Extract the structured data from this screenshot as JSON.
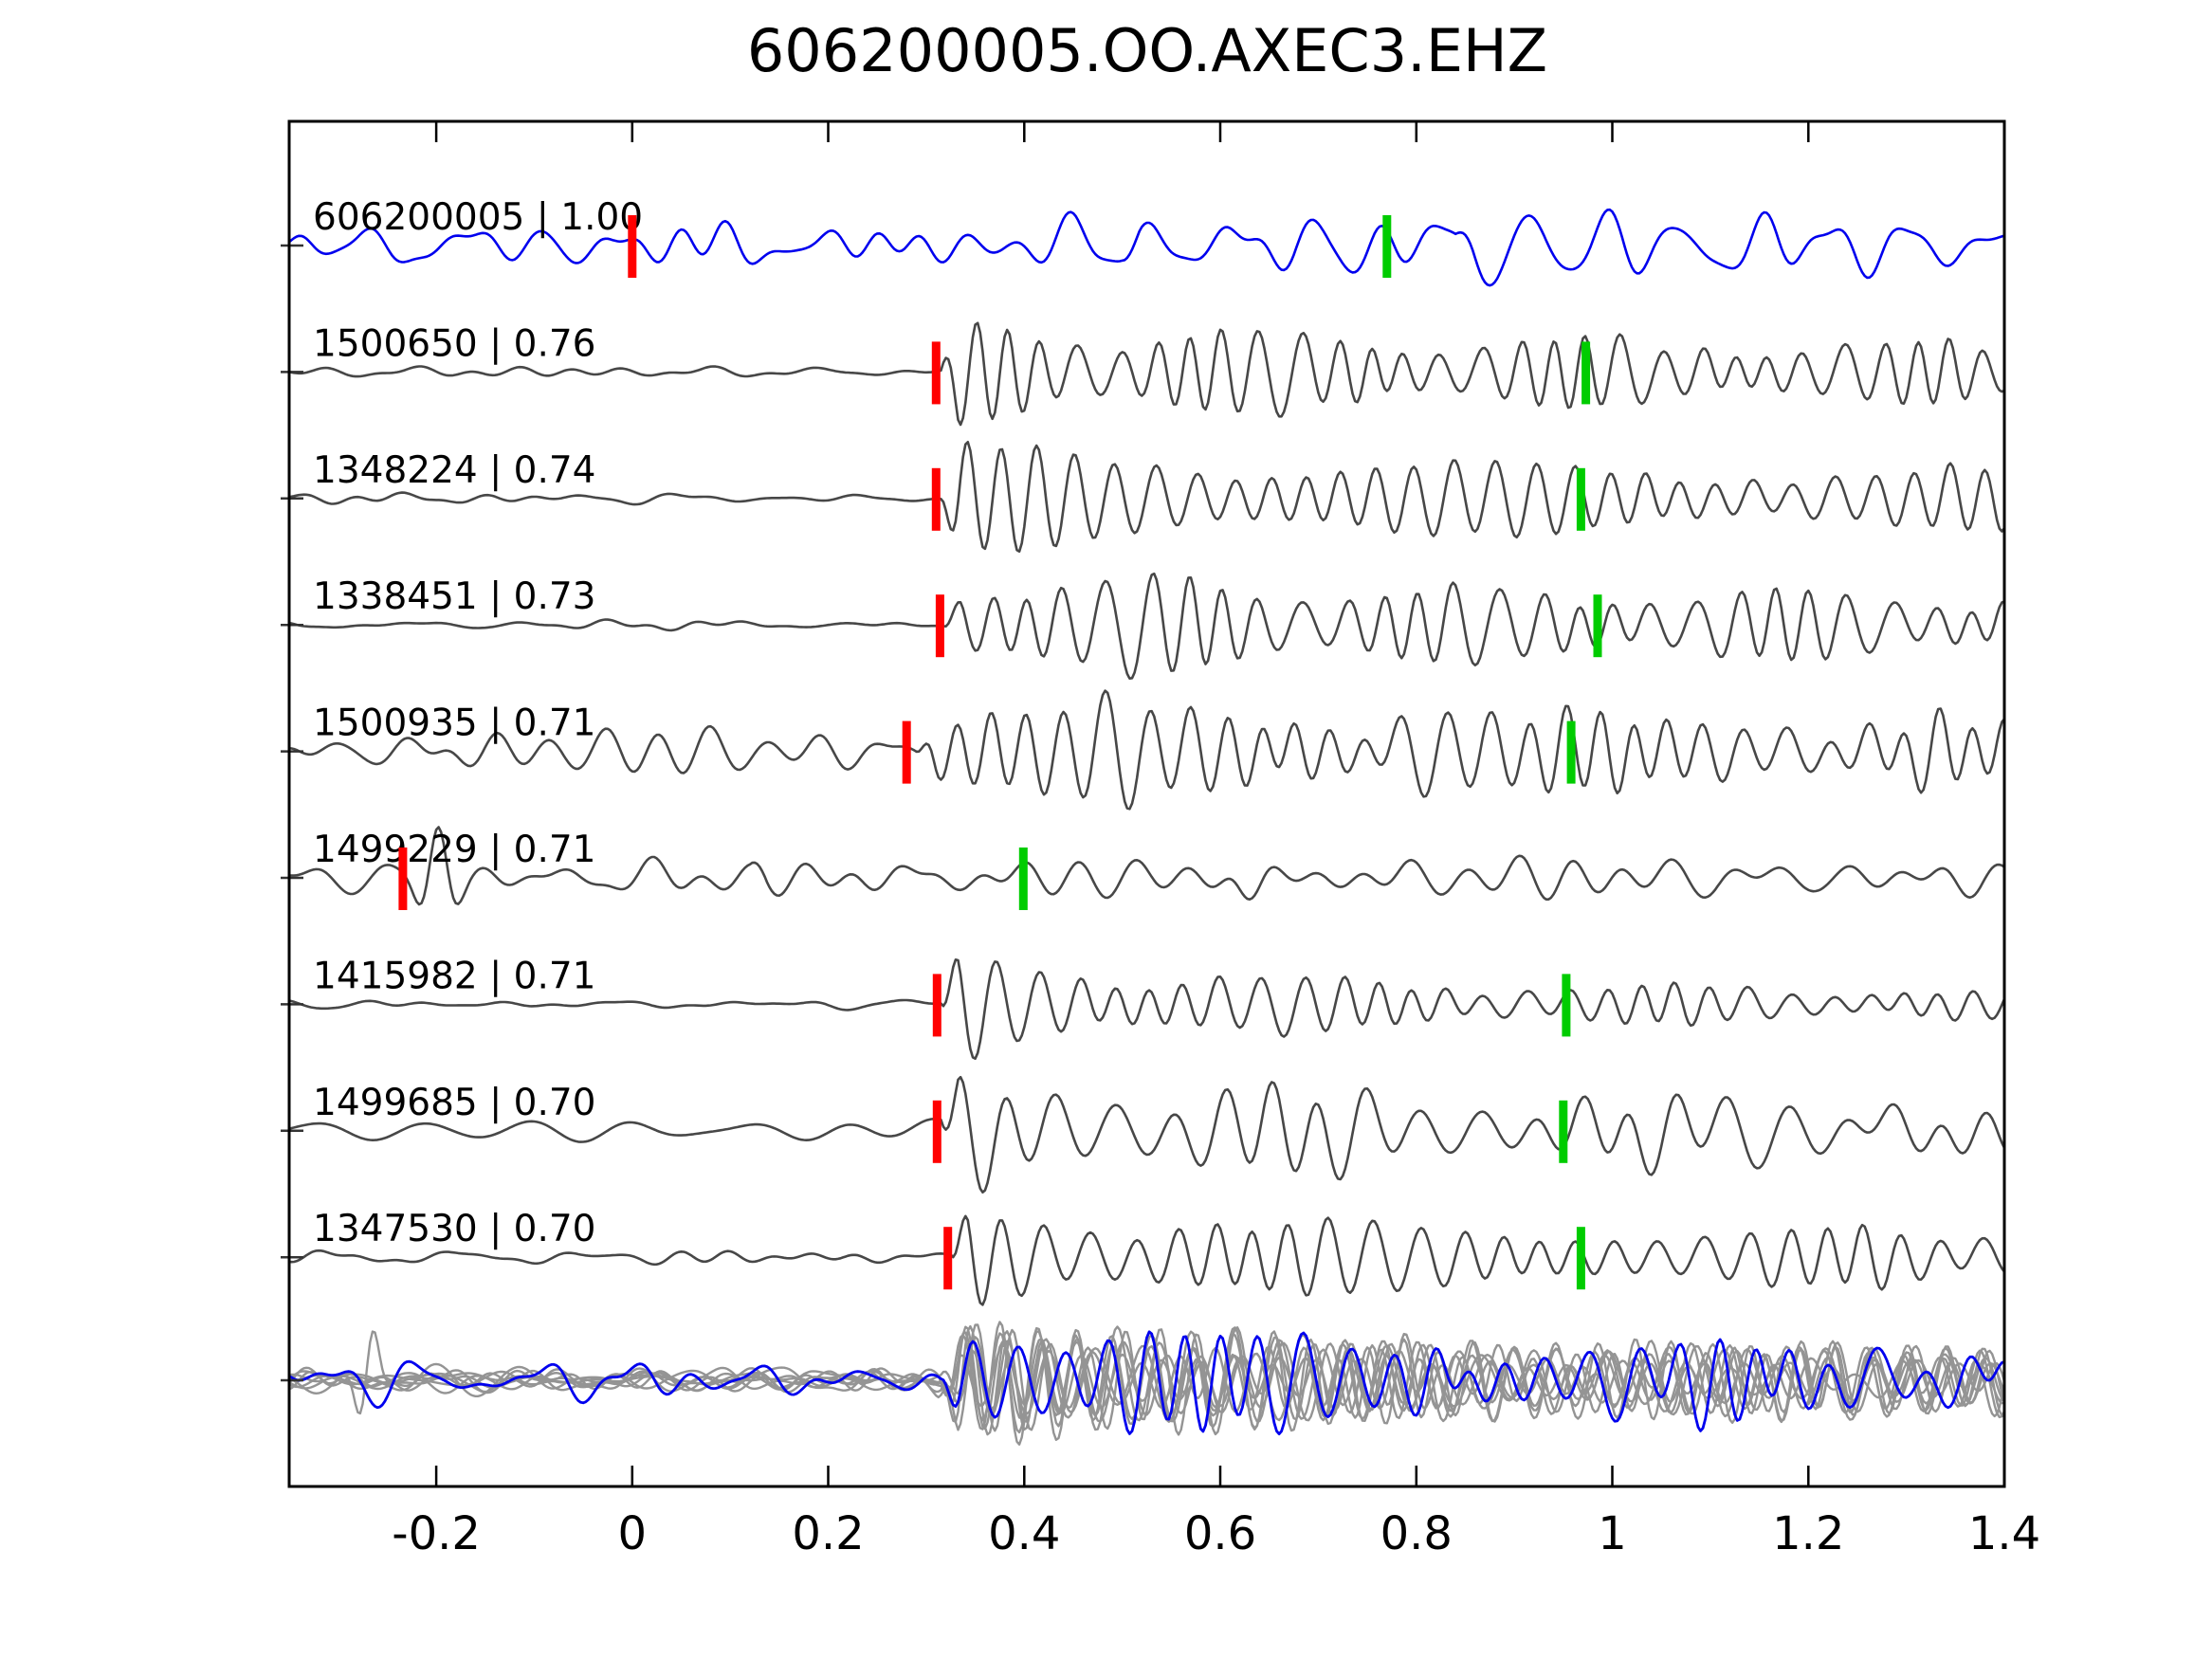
{
  "title": "606200005.OO.AXEC3.EHZ",
  "colors": {
    "reference_trace": "#0000ee",
    "match_trace": "#474747",
    "overlay_gray": "#949494",
    "pick_red": "#ff0000",
    "pick_green": "#00cc00",
    "frame": "#000000",
    "text": "#000000"
  },
  "chart_data": {
    "type": "line",
    "title": "606200005.OO.AXEC3.EHZ",
    "description": "Waveform cross-correlation alignment plot: reference event trace (blue) with best-matching event traces (gray), red bars = pick/onset markers, green bars = secondary pick markers, bottom row = all traces superimposed.",
    "x_axis": {
      "min": -0.35,
      "max": 1.4,
      "tick_values": [
        -0.2,
        0,
        0.2,
        0.4,
        0.6,
        0.8,
        1.0,
        1.2,
        1.4
      ],
      "tick_labels": [
        "-0.2",
        "0",
        "0.2",
        "0.4",
        "0.6",
        "0.8",
        "1",
        "1.2",
        "1.4"
      ],
      "grid": false
    },
    "legend": null,
    "traces": [
      {
        "id": "606200005",
        "correlation": "1.00",
        "display": "606200005 | 1.00",
        "role": "reference",
        "red_pick": 0.0,
        "green_pick": 0.77,
        "synth": {
          "seed": 7,
          "pre": 22,
          "band": [
            5,
            26
          ],
          "bursts": [
            [
              0.5,
              24,
              13,
              1.0,
              0.45
            ],
            [
              0.84,
              20,
              16,
              3.0,
              0.15
            ]
          ],
          "spikes": []
        }
      },
      {
        "id": "1500650",
        "correlation": "0.76",
        "display": "1500650 | 0.76",
        "role": "match",
        "red_pick": 0.31,
        "green_pick": 0.973,
        "synth": {
          "seed": 21,
          "pre": 5,
          "band": [
            6,
            22
          ],
          "bursts": [
            [
              0.315,
              55,
              27,
              2.0,
              0.48
            ]
          ],
          "spikes": []
        }
      },
      {
        "id": "1348224",
        "correlation": "0.74",
        "display": "1348224 | 0.74",
        "role": "match",
        "red_pick": 0.31,
        "green_pick": 0.968,
        "synth": {
          "seed": 33,
          "pre": 5,
          "band": [
            6,
            24
          ],
          "bursts": [
            [
              0.315,
              55,
              26,
              2.0,
              0.48
            ]
          ],
          "spikes": []
        }
      },
      {
        "id": "1338451",
        "correlation": "0.73",
        "display": "1338451 | 0.73",
        "role": "match",
        "red_pick": 0.314,
        "green_pick": 0.985,
        "synth": {
          "seed": 45,
          "pre": 6,
          "band": [
            6,
            24
          ],
          "bursts": [
            [
              0.318,
              56,
              25,
              1.8,
              0.5
            ]
          ],
          "spikes": []
        }
      },
      {
        "id": "1500935",
        "correlation": "0.71",
        "display": "1500935 | 0.71",
        "role": "match",
        "red_pick": 0.28,
        "green_pick": 0.958,
        "synth": {
          "seed": 58,
          "pre": 20,
          "band": [
            10,
            28
          ],
          "bursts": [
            [
              0.29,
              52,
              26,
              1.5,
              0.55
            ]
          ],
          "spikes": []
        }
      },
      {
        "id": "1499229",
        "correlation": "0.71",
        "display": "1499229 | 0.71",
        "role": "match",
        "red_pick": -0.234,
        "green_pick": 0.399,
        "synth": {
          "seed": 64,
          "pre": 16,
          "band": [
            6,
            24
          ],
          "bursts": [
            [
              0.12,
              16,
              18,
              0.6,
              0.65
            ]
          ],
          "spikes": [
            [
              -0.2,
              52,
              0.022,
              22
            ],
            [
              0.63,
              26,
              0.025,
              14
            ]
          ]
        }
      },
      {
        "id": "1415982",
        "correlation": "0.71",
        "display": "1415982 | 0.71",
        "role": "match",
        "red_pick": 0.311,
        "green_pick": 0.953,
        "synth": {
          "seed": 77,
          "pre": 5,
          "band": [
            6,
            24
          ],
          "bursts": [
            [
              0.315,
              54,
              26,
              3.2,
              0.28
            ]
          ],
          "spikes": []
        }
      },
      {
        "id": "1499685",
        "correlation": "0.70",
        "display": "1499685 | 0.70",
        "role": "match",
        "red_pick": 0.311,
        "green_pick": 0.95,
        "synth": {
          "seed": 82,
          "pre": 14,
          "band": [
            4,
            14
          ],
          "bursts": [
            [
              0.315,
              58,
              19,
              2.2,
              0.42
            ]
          ],
          "spikes": []
        }
      },
      {
        "id": "1347530",
        "correlation": "0.70",
        "display": "1347530 | 0.70",
        "role": "match",
        "red_pick": 0.322,
        "green_pick": 0.968,
        "synth": {
          "seed": 95,
          "pre": 7,
          "band": [
            6,
            24
          ],
          "bursts": [
            [
              0.325,
              56,
              24,
              2.4,
              0.45
            ]
          ],
          "spikes": []
        }
      }
    ],
    "overlay_row": {
      "description": "all traces superimposed, reference in blue on top",
      "gray_traces": [
        {
          "seed": 101,
          "pre": 12,
          "band": [
            6,
            26
          ],
          "bursts": [
            [
              0.315,
              55,
              26,
              2.0,
              0.5
            ]
          ],
          "spikes": [
            [
              -0.27,
              62,
              0.015,
              26
            ]
          ]
        },
        {
          "seed": 102,
          "pre": 10,
          "band": [
            6,
            26
          ],
          "bursts": [
            [
              0.315,
              60,
              24,
              2.2,
              0.45
            ]
          ],
          "spikes": []
        },
        {
          "seed": 103,
          "pre": 14,
          "band": [
            6,
            26
          ],
          "bursts": [
            [
              0.312,
              52,
              27,
              1.8,
              0.5
            ]
          ],
          "spikes": []
        },
        {
          "seed": 104,
          "pre": 9,
          "band": [
            6,
            26
          ],
          "bursts": [
            [
              0.318,
              58,
              25,
              2.0,
              0.5
            ]
          ],
          "spikes": []
        },
        {
          "seed": 105,
          "pre": 13,
          "band": [
            6,
            26
          ],
          "bursts": [
            [
              0.315,
              62,
              23,
              2.3,
              0.45
            ]
          ],
          "spikes": []
        },
        {
          "seed": 106,
          "pre": 11,
          "band": [
            6,
            26
          ],
          "bursts": [
            [
              0.316,
              54,
              26,
              1.9,
              0.52
            ]
          ],
          "spikes": []
        },
        {
          "seed": 107,
          "pre": 15,
          "band": [
            6,
            26
          ],
          "bursts": [
            [
              0.313,
              57,
              24,
              2.1,
              0.48
            ]
          ],
          "spikes": []
        },
        {
          "seed": 108,
          "pre": 10,
          "band": [
            6,
            26
          ],
          "bursts": [
            [
              0.317,
              59,
              25,
              2.0,
              0.5
            ]
          ],
          "spikes": []
        }
      ],
      "blue_trace": {
        "seed": 201,
        "pre": 20,
        "band": [
          5,
          26
        ],
        "bursts": [
          [
            0.315,
            58,
            24,
            2.0,
            0.5
          ]
        ],
        "spikes": []
      }
    }
  }
}
